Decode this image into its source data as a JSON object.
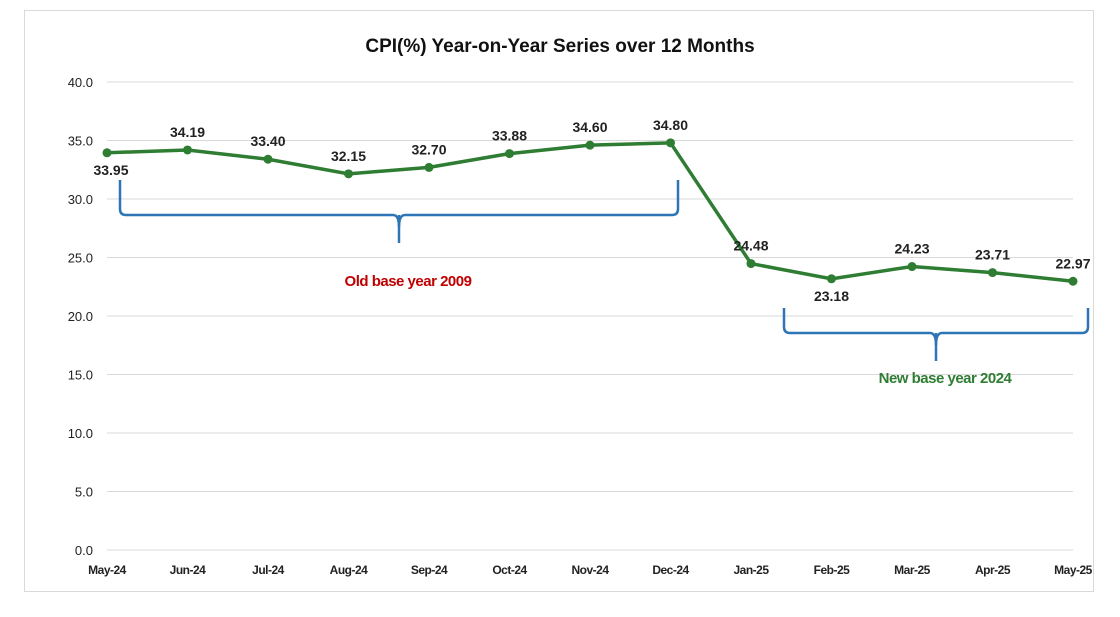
{
  "chart_data": {
    "type": "line",
    "title": "CPI(%) Year-on-Year Series over 12 Months",
    "xlabel": "",
    "ylabel": "",
    "categories": [
      "May-24",
      "Jun-24",
      "Jul-24",
      "Aug-24",
      "Sep-24",
      "Oct-24",
      "Nov-24",
      "Dec-24",
      "Jan-25",
      "Feb-25",
      "Mar-25",
      "Apr-25",
      "May-25"
    ],
    "series": [
      {
        "values": [
          33.95,
          34.19,
          33.4,
          32.15,
          32.7,
          33.88,
          34.6,
          34.8,
          24.48,
          23.18,
          24.23,
          23.71,
          22.97
        ],
        "labels": [
          "33.95",
          "34.19",
          "33.40",
          "32.15",
          "32.70",
          "33.88",
          "34.60",
          "34.80",
          "24.48",
          "23.18",
          "24.23",
          "23.71",
          "22.97"
        ]
      }
    ],
    "ylim": [
      0,
      40
    ],
    "yticks": [
      "0.0",
      "5.0",
      "10.0",
      "15.0",
      "20.0",
      "25.0",
      "30.0",
      "35.0",
      "40.0"
    ],
    "grid": true,
    "legend": "none",
    "annotations": [
      {
        "text": "Old base year 2009",
        "color": "#c00000",
        "bracket_color": "#2e75b6"
      },
      {
        "text": "New base year 2024",
        "color": "#2e7d32",
        "bracket_color": "#2e75b6"
      }
    ],
    "colors": {
      "line": "#2e7d32",
      "grid": "#d9d9d9"
    }
  }
}
